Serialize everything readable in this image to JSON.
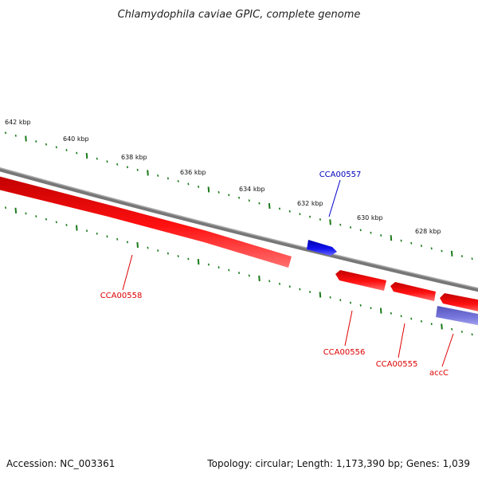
{
  "title": "Chlamydophila caviae GPIC, complete genome",
  "footer": {
    "accession": "Accession: NC_003361",
    "summary": "Topology: circular; Length: 1,173,390 bp; Genes: 1,039"
  },
  "ruler_labels": [
    "642 kbp",
    "640 kbp",
    "638 kbp",
    "636 kbp",
    "634 kbp",
    "632 kbp",
    "630 kbp",
    "628 kbp"
  ],
  "genes": [
    {
      "name": "CCA00558",
      "strand": "reverse",
      "color": "#ee0000"
    },
    {
      "name": "CCA00557",
      "strand": "forward",
      "color": "#0000cc"
    },
    {
      "name": "CCA00556",
      "strand": "reverse",
      "color": "#ee0000"
    },
    {
      "name": "CCA00555",
      "strand": "reverse",
      "color": "#ee0000"
    },
    {
      "name": "accC",
      "strand": "reverse",
      "color": "#6666cc"
    }
  ],
  "colors": {
    "backbone": "#888888",
    "ticks": "#1a7a1a",
    "forward_gene": "#0000cc",
    "reverse_gene": "#ee0000",
    "other_gene": "#6666cc"
  }
}
